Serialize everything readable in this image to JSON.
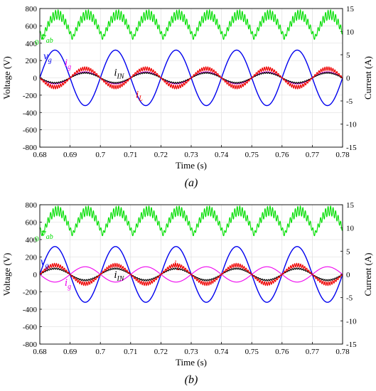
{
  "chart_data": [
    {
      "type": "line",
      "caption": "(a)",
      "xlabel": "Time (s)",
      "ylabel_left": "Voltage (V)",
      "ylabel_right": "Current (A)",
      "xlim": [
        0.68,
        0.78
      ],
      "ylim_left": [
        -800,
        800
      ],
      "ylim_right": [
        -15,
        15
      ],
      "x_ticks": [
        "0.68",
        "0.69",
        "0.7",
        "0.71",
        "0.72",
        "0.73",
        "0.74",
        "0.75",
        "0.76",
        "0.77",
        "0.78"
      ],
      "y_ticks_left": [
        "-800",
        "-600",
        "-400",
        "-200",
        "0",
        "200",
        "400",
        "600",
        "800"
      ],
      "y_ticks_right": [
        "-15",
        "-10",
        "-5",
        "0",
        "5",
        "10",
        "15"
      ],
      "grid": true,
      "series": [
        {
          "name": "v_ab",
          "color": "#00dd00",
          "axis": "left",
          "shape": "rectified",
          "peak": 730,
          "trough": 455,
          "ripple": 55
        },
        {
          "name": "v_g",
          "color": "#0000ee",
          "axis": "left",
          "shape": "sine",
          "amplitude": 320,
          "phase": 0
        },
        {
          "name": "i_g",
          "color": "#ee00ee",
          "axis": "right",
          "shape": "sine",
          "amplitude": 1.3,
          "phase": 3.14159
        },
        {
          "name": "i_IN",
          "color": "#000000",
          "axis": "right",
          "shape": "sine",
          "amplitude": 1.1,
          "phase": 3.14159,
          "ripple": 0.15
        },
        {
          "name": "i_L",
          "color": "#ee0000",
          "axis": "right",
          "shape": "sine",
          "amplitude": 2.0,
          "phase": 3.14159,
          "ripple": 0.4
        }
      ],
      "frequency_hz": 50,
      "labels": [
        {
          "text": "v",
          "sub": "ab",
          "series": "v_ab",
          "x": 0.6805,
          "y": 440
        },
        {
          "text": "0",
          "series": "v_ab",
          "x": 0.6784,
          "y": 380,
          "small": true
        },
        {
          "text": "v",
          "sub": "g",
          "series": "v_g",
          "x": 0.6812,
          "y": 215
        },
        {
          "text": "i",
          "sub": "g",
          "series": "i_g",
          "x": 0.6882,
          "y": 135
        },
        {
          "text": "i",
          "sub": "IN",
          "series": "i_IN",
          "x": 0.7045,
          "y": 25
        },
        {
          "text": "i",
          "sub": "L",
          "series": "i_L",
          "x": 0.7117,
          "y": -230
        }
      ]
    },
    {
      "type": "line",
      "caption": "(b)",
      "xlabel": "Time (s)",
      "ylabel_left": "Voltage (V)",
      "ylabel_right": "Current (A)",
      "xlim": [
        0.68,
        0.78
      ],
      "ylim_left": [
        -800,
        800
      ],
      "ylim_right": [
        -15,
        15
      ],
      "x_ticks": [
        "0.68",
        "0.69",
        "0.7",
        "0.71",
        "0.72",
        "0.73",
        "0.74",
        "0.75",
        "0.76",
        "0.77",
        "0.78"
      ],
      "y_ticks_left": [
        "-800",
        "-600",
        "-400",
        "-200",
        "0",
        "200",
        "400",
        "600",
        "800"
      ],
      "y_ticks_right": [
        "-15",
        "-10",
        "-5",
        "0",
        "5",
        "10",
        "15"
      ],
      "grid": true,
      "series": [
        {
          "name": "v_ab",
          "color": "#00dd00",
          "axis": "left",
          "shape": "rectified",
          "peak": 730,
          "trough": 455,
          "ripple": 55
        },
        {
          "name": "v_g",
          "color": "#0000ee",
          "axis": "left",
          "shape": "sine",
          "amplitude": 320,
          "phase": 0
        },
        {
          "name": "i_g",
          "color": "#ee00ee",
          "axis": "right",
          "shape": "sine",
          "amplitude": 1.65,
          "phase": 3.14159
        },
        {
          "name": "i_IN",
          "color": "#000000",
          "axis": "right",
          "shape": "sine",
          "amplitude": 1.25,
          "phase": 0,
          "ripple": 0.15
        },
        {
          "name": "i_L",
          "color": "#ee0000",
          "axis": "right",
          "shape": "sine",
          "amplitude": 2.0,
          "phase": 0,
          "ripple": 0.4
        }
      ],
      "frequency_hz": 50,
      "labels": [
        {
          "text": "v",
          "sub": "ab",
          "series": "v_ab",
          "x": 0.6805,
          "y": 440
        },
        {
          "text": "0",
          "series": "v_ab",
          "x": 0.6784,
          "y": 380,
          "small": true
        },
        {
          "text": "v",
          "sub": "g",
          "series": "v_g",
          "x": 0.6802,
          "y": 110
        },
        {
          "text": "i",
          "sub": "g",
          "series": "i_g",
          "x": 0.6882,
          "y": -130
        },
        {
          "text": "i",
          "sub": "IN",
          "series": "i_IN",
          "x": 0.7045,
          "y": -40
        },
        {
          "text": "i",
          "sub": "L",
          "series": "i_L",
          "x": 0.7242,
          "y": 80
        }
      ]
    }
  ]
}
